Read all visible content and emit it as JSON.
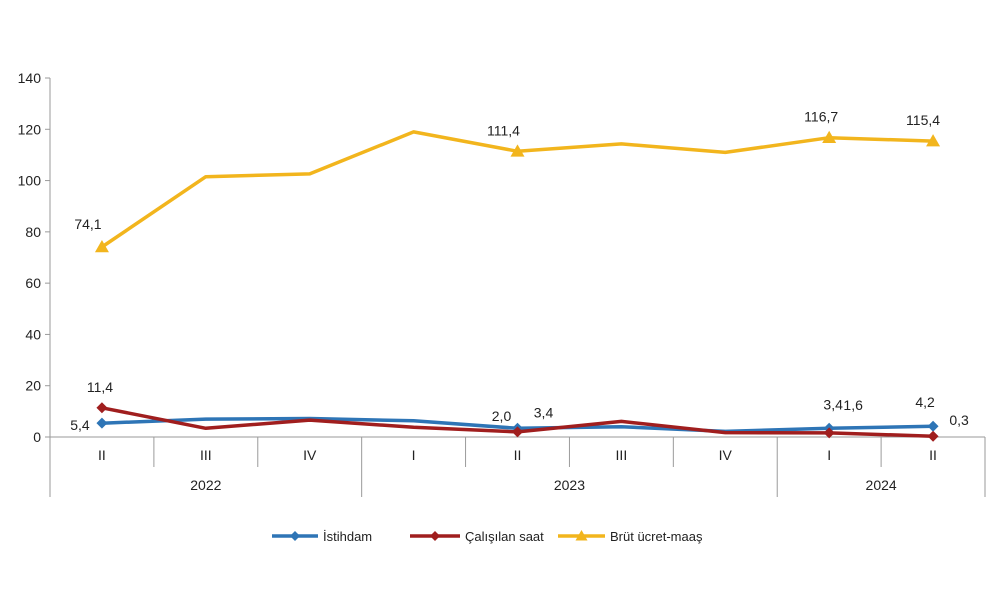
{
  "chart_data": {
    "type": "line",
    "categories": [
      "II",
      "III",
      "IV",
      "I",
      "II",
      "III",
      "IV",
      "I",
      "II"
    ],
    "year_groups": [
      {
        "label": "2022",
        "start": 0,
        "end": 2
      },
      {
        "label": "2023",
        "start": 3,
        "end": 6
      },
      {
        "label": "2024",
        "start": 7,
        "end": 8
      }
    ],
    "ylim": [
      0,
      140
    ],
    "yticks": [
      0,
      20,
      40,
      60,
      80,
      100,
      120,
      140
    ],
    "grid": false,
    "legend_position": "bottom",
    "series": [
      {
        "name": "İstihdam",
        "color": "#2E75B6",
        "marker": "diamond",
        "values": [
          5.4,
          7.0,
          7.2,
          6.3,
          3.4,
          4.0,
          2.2,
          3.4,
          4.2
        ],
        "labels": {
          "0": "5,4",
          "4": "3,4",
          "7": "3,4",
          "8": "4,2"
        }
      },
      {
        "name": "Çalışılan saat",
        "color": "#A01E1E",
        "marker": "diamond",
        "values": [
          11.4,
          3.4,
          6.6,
          3.8,
          2.0,
          6.1,
          1.7,
          1.6,
          0.3
        ],
        "labels": {
          "0": "11,4",
          "4": "2,0",
          "7": "1,6",
          "8": "0,3"
        }
      },
      {
        "name": "Brüt ücret-maaş",
        "color": "#F2B51D",
        "marker": "triangle",
        "values": [
          74.1,
          101.5,
          102.6,
          119.0,
          111.4,
          114.3,
          111.0,
          116.7,
          115.4
        ],
        "labels": {
          "0": "74,1",
          "4": "111,4",
          "7": "116,7",
          "8": "115,4"
        }
      }
    ]
  }
}
